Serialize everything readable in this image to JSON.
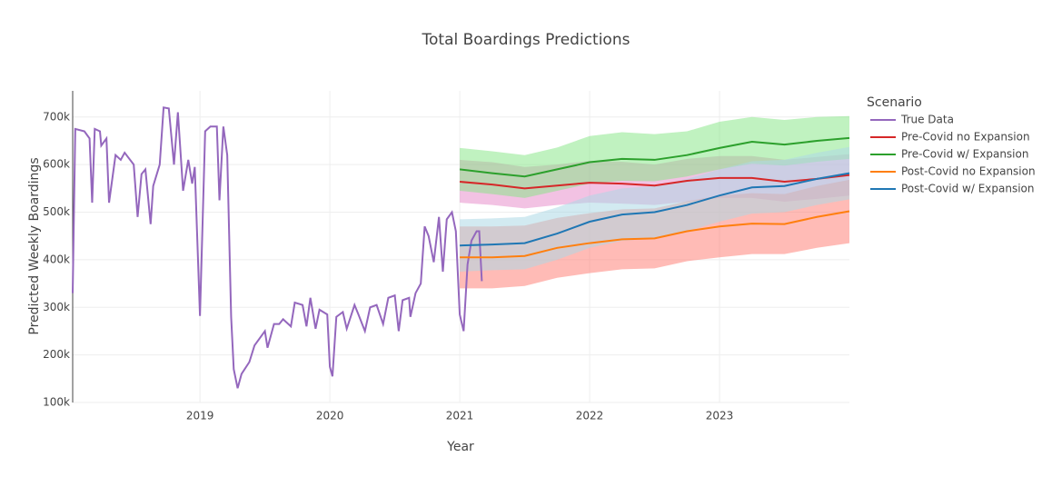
{
  "chart_data": {
    "type": "line",
    "title": "Total Boardings Predictions",
    "x_label": "Year",
    "y_label": "Predicted Weekly Boardings",
    "legend_title": "Scenario",
    "legend_position": "right",
    "grid": true,
    "xlim": [
      2018.02,
      2024.0
    ],
    "xticks": [
      2019,
      2020,
      2021,
      2022,
      2023
    ],
    "ylim": [
      100000,
      755000
    ],
    "yticks": [
      {
        "value": 100000,
        "label": "100k"
      },
      {
        "value": 200000,
        "label": "200k"
      },
      {
        "value": 300000,
        "label": "300k"
      },
      {
        "value": 400000,
        "label": "400k"
      },
      {
        "value": 500000,
        "label": "500k"
      },
      {
        "value": 600000,
        "label": "600k"
      },
      {
        "value": 700000,
        "label": "700k"
      }
    ],
    "series": [
      {
        "name": "True Data",
        "color": "#9467bd",
        "x": [
          2018.02,
          2018.04,
          2018.11,
          2018.15,
          2018.17,
          2018.19,
          2018.23,
          2018.24,
          2018.28,
          2018.3,
          2018.35,
          2018.39,
          2018.42,
          2018.49,
          2018.52,
          2018.55,
          2018.58,
          2018.62,
          2018.64,
          2018.69,
          2018.72,
          2018.76,
          2018.8,
          2018.83,
          2018.87,
          2018.91,
          2018.94,
          2018.96,
          2019.0,
          2019.04,
          2019.08,
          2019.13,
          2019.15,
          2019.18,
          2019.21,
          2019.24,
          2019.26,
          2019.29,
          2019.32,
          2019.38,
          2019.42,
          2019.5,
          2019.52,
          2019.57,
          2019.61,
          2019.64,
          2019.7,
          2019.73,
          2019.79,
          2019.82,
          2019.85,
          2019.89,
          2019.92,
          2019.98,
          2020.0,
          2020.02,
          2020.05,
          2020.1,
          2020.13,
          2020.19,
          2020.22,
          2020.27,
          2020.31,
          2020.36,
          2020.41,
          2020.45,
          2020.5,
          2020.53,
          2020.56,
          2020.61,
          2020.62,
          2020.66,
          2020.7,
          2020.73,
          2020.76,
          2020.8,
          2020.84,
          2020.87,
          2020.9,
          2020.94,
          2020.97,
          2021.0,
          2021.03,
          2021.06,
          2021.09,
          2021.13,
          2021.15,
          2021.17
        ],
        "values": [
          330000,
          675000,
          670000,
          655000,
          520000,
          675000,
          670000,
          640000,
          655000,
          520000,
          620000,
          610000,
          625000,
          600000,
          490000,
          580000,
          590000,
          475000,
          555000,
          600000,
          720000,
          718000,
          600000,
          710000,
          545000,
          610000,
          560000,
          595000,
          282000,
          670000,
          680000,
          680000,
          525000,
          680000,
          620000,
          280000,
          170000,
          130000,
          160000,
          185000,
          220000,
          250000,
          215000,
          265000,
          265000,
          275000,
          260000,
          310000,
          305000,
          260000,
          320000,
          255000,
          295000,
          285000,
          175000,
          155000,
          280000,
          290000,
          255000,
          305000,
          285000,
          250000,
          300000,
          305000,
          265000,
          320000,
          325000,
          250000,
          315000,
          320000,
          280000,
          330000,
          350000,
          470000,
          450000,
          395000,
          490000,
          375000,
          485000,
          500000,
          460000,
          285000,
          250000,
          390000,
          440000,
          460000,
          460000,
          355000
        ]
      },
      {
        "name": "Pre-Covid no Expansion",
        "color": "#d62728",
        "band_color": "rgba(227,119,194,0.45)",
        "x": [
          2021,
          2021.25,
          2021.5,
          2021.75,
          2022,
          2022.25,
          2022.5,
          2022.75,
          2023,
          2023.25,
          2023.5,
          2023.75,
          2024
        ],
        "values": [
          564000,
          558000,
          550000,
          556000,
          562000,
          560000,
          556000,
          566000,
          572000,
          572000,
          564000,
          570000,
          578000
        ],
        "lower": [
          520000,
          515000,
          508000,
          515000,
          520000,
          518000,
          515000,
          522000,
          530000,
          530000,
          522000,
          528000,
          535000
        ],
        "upper": [
          610000,
          605000,
          595000,
          600000,
          608000,
          606000,
          600000,
          612000,
          618000,
          618000,
          610000,
          616000,
          622000
        ]
      },
      {
        "name": "Pre-Covid w/ Expansion",
        "color": "#2ca02c",
        "band_color": "rgba(130,230,130,0.5)",
        "x": [
          2021,
          2021.25,
          2021.5,
          2021.75,
          2022,
          2022.25,
          2022.5,
          2022.75,
          2023,
          2023.25,
          2023.5,
          2023.75,
          2024
        ],
        "values": [
          590000,
          582000,
          575000,
          590000,
          605000,
          612000,
          610000,
          620000,
          635000,
          648000,
          642000,
          650000,
          656000
        ],
        "lower": [
          545000,
          538000,
          530000,
          545000,
          560000,
          566000,
          565000,
          575000,
          590000,
          602000,
          598000,
          606000,
          612000
        ],
        "upper": [
          635000,
          628000,
          620000,
          636000,
          660000,
          668000,
          664000,
          670000,
          690000,
          700000,
          694000,
          700000,
          702000
        ]
      },
      {
        "name": "Post-Covid no Expansion",
        "color": "#ff7f0e",
        "band_color": "rgba(255,120,110,0.5)",
        "x": [
          2021,
          2021.25,
          2021.5,
          2021.75,
          2022,
          2022.25,
          2022.5,
          2022.75,
          2023,
          2023.25,
          2023.5,
          2023.75,
          2024
        ],
        "values": [
          405000,
          405000,
          408000,
          425000,
          435000,
          443000,
          445000,
          460000,
          470000,
          476000,
          475000,
          490000,
          502000
        ],
        "lower": [
          340000,
          340000,
          345000,
          362000,
          372000,
          380000,
          382000,
          397000,
          405000,
          412000,
          412000,
          425000,
          435000
        ],
        "upper": [
          470000,
          470000,
          472000,
          488000,
          498000,
          506000,
          508000,
          523000,
          535000,
          540000,
          538000,
          555000,
          568000
        ]
      },
      {
        "name": "Post-Covid w/ Expansion",
        "color": "#1f77b4",
        "band_color": "rgba(173,216,230,0.55)",
        "x": [
          2021,
          2021.25,
          2021.5,
          2021.75,
          2022,
          2022.25,
          2022.5,
          2022.75,
          2023,
          2023.25,
          2023.5,
          2023.75,
          2024
        ],
        "values": [
          430000,
          432000,
          435000,
          455000,
          480000,
          495000,
          500000,
          515000,
          535000,
          552000,
          555000,
          570000,
          582000
        ],
        "lower": [
          375000,
          378000,
          380000,
          400000,
          425000,
          440000,
          445000,
          460000,
          480000,
          497000,
          500000,
          515000,
          527000
        ],
        "upper": [
          485000,
          487000,
          490000,
          510000,
          535000,
          550000,
          555000,
          570000,
          590000,
          607000,
          610000,
          625000,
          637000
        ]
      }
    ]
  }
}
